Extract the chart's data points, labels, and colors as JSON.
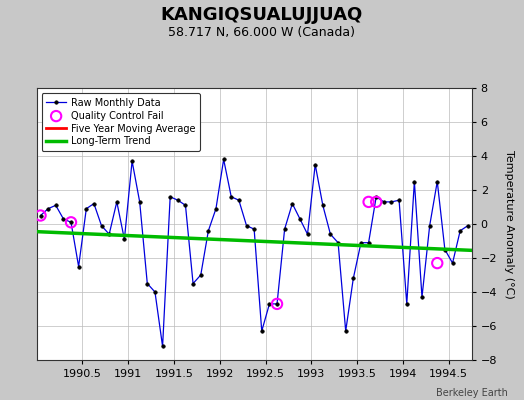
{
  "title": "KANGIQSUALUJJUAQ",
  "subtitle": "58.717 N, 66.000 W (Canada)",
  "ylabel": "Temperature Anomaly (°C)",
  "xlim": [
    1990.0,
    1994.75
  ],
  "ylim": [
    -8,
    8
  ],
  "yticks": [
    -8,
    -6,
    -4,
    -2,
    0,
    2,
    4,
    6,
    8
  ],
  "xticks": [
    1990.5,
    1991.0,
    1991.5,
    1992.0,
    1992.5,
    1993.0,
    1993.5,
    1994.0,
    1994.5
  ],
  "background_color": "#c8c8c8",
  "plot_bg_color": "#ffffff",
  "raw_x": [
    1990.042,
    1990.125,
    1990.208,
    1990.292,
    1990.375,
    1990.458,
    1990.542,
    1990.625,
    1990.708,
    1990.792,
    1990.875,
    1990.958,
    1991.042,
    1991.125,
    1991.208,
    1991.292,
    1991.375,
    1991.458,
    1991.542,
    1991.625,
    1991.708,
    1991.792,
    1991.875,
    1991.958,
    1992.042,
    1992.125,
    1992.208,
    1992.292,
    1992.375,
    1992.458,
    1992.542,
    1992.625,
    1992.708,
    1992.792,
    1992.875,
    1992.958,
    1993.042,
    1993.125,
    1993.208,
    1993.292,
    1993.375,
    1993.458,
    1993.542,
    1993.625,
    1993.708,
    1993.792,
    1993.875,
    1993.958,
    1994.042,
    1994.125,
    1994.208,
    1994.292,
    1994.375,
    1994.458,
    1994.542,
    1994.625,
    1994.708
  ],
  "raw_y": [
    0.5,
    0.9,
    1.1,
    0.3,
    0.1,
    -2.5,
    0.9,
    1.2,
    -0.1,
    -0.6,
    1.3,
    -0.9,
    3.7,
    1.3,
    -3.5,
    -4.0,
    -7.2,
    1.6,
    1.4,
    1.1,
    -3.5,
    -3.0,
    -0.4,
    0.9,
    3.8,
    1.6,
    1.4,
    -0.1,
    -0.3,
    -6.3,
    -4.7,
    -4.7,
    -0.3,
    1.2,
    0.3,
    -0.6,
    3.5,
    1.1,
    -0.6,
    -1.1,
    -6.3,
    -3.2,
    -1.1,
    -1.1,
    1.6,
    1.3,
    1.3,
    1.4,
    -4.7,
    2.5,
    -4.3,
    -0.1,
    2.5,
    -1.5,
    -2.3,
    -0.4,
    -0.1
  ],
  "qc_fail_x": [
    1990.042,
    1990.375,
    1992.625,
    1993.625,
    1993.708,
    1994.375
  ],
  "qc_fail_y": [
    0.5,
    0.1,
    -4.7,
    1.3,
    1.3,
    -2.3
  ],
  "trend_x": [
    1990.0,
    1994.75
  ],
  "trend_y": [
    -0.45,
    -1.55
  ],
  "watermark": "Berkeley Earth",
  "line_color": "#0000dd",
  "marker_color": "#000000",
  "qc_color": "#ff00ff",
  "trend_color": "#00bb00",
  "moving_avg_color": "#ff0000",
  "grid_color": "#bbbbbb",
  "title_fontsize": 13,
  "subtitle_fontsize": 9,
  "tick_fontsize": 8,
  "ylabel_fontsize": 8
}
